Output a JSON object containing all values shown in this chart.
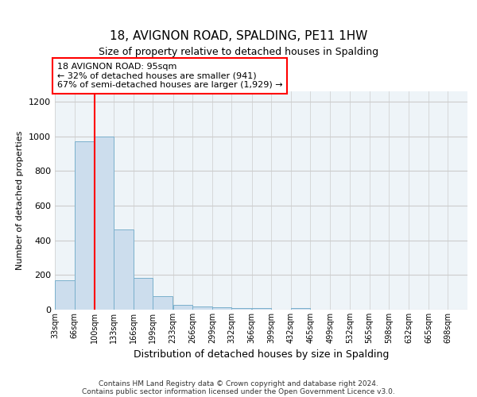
{
  "title": "18, AVIGNON ROAD, SPALDING, PE11 1HW",
  "subtitle": "Size of property relative to detached houses in Spalding",
  "xlabel": "Distribution of detached houses by size in Spalding",
  "ylabel": "Number of detached properties",
  "bar_color": "#ccdded",
  "bar_edge_color": "#7ab0cc",
  "annotation_box_text": "18 AVIGNON ROAD: 95sqm\n← 32% of detached houses are smaller (941)\n67% of semi-detached houses are larger (1,929) →",
  "property_line_x": 100,
  "categories": [
    "33sqm",
    "66sqm",
    "100sqm",
    "133sqm",
    "166sqm",
    "199sqm",
    "233sqm",
    "266sqm",
    "299sqm",
    "332sqm",
    "366sqm",
    "399sqm",
    "432sqm",
    "465sqm",
    "499sqm",
    "532sqm",
    "565sqm",
    "598sqm",
    "632sqm",
    "665sqm",
    "698sqm"
  ],
  "bin_edges": [
    33,
    66,
    100,
    133,
    166,
    199,
    233,
    266,
    299,
    332,
    366,
    399,
    432,
    465,
    499,
    532,
    565,
    598,
    632,
    665,
    698
  ],
  "bin_width": 33,
  "values": [
    170,
    970,
    1000,
    465,
    185,
    80,
    28,
    20,
    15,
    10,
    8,
    0,
    10,
    0,
    0,
    0,
    0,
    0,
    0,
    0,
    0
  ],
  "ylim": [
    0,
    1260
  ],
  "yticks": [
    0,
    200,
    400,
    600,
    800,
    1000,
    1200
  ],
  "footer_line1": "Contains HM Land Registry data © Crown copyright and database right 2024.",
  "footer_line2": "Contains public sector information licensed under the Open Government Licence v3.0.",
  "background_color": "#ffffff",
  "grid_color": "#cccccc",
  "title_fontsize": 11,
  "subtitle_fontsize": 9,
  "ylabel_fontsize": 8,
  "xlabel_fontsize": 9
}
